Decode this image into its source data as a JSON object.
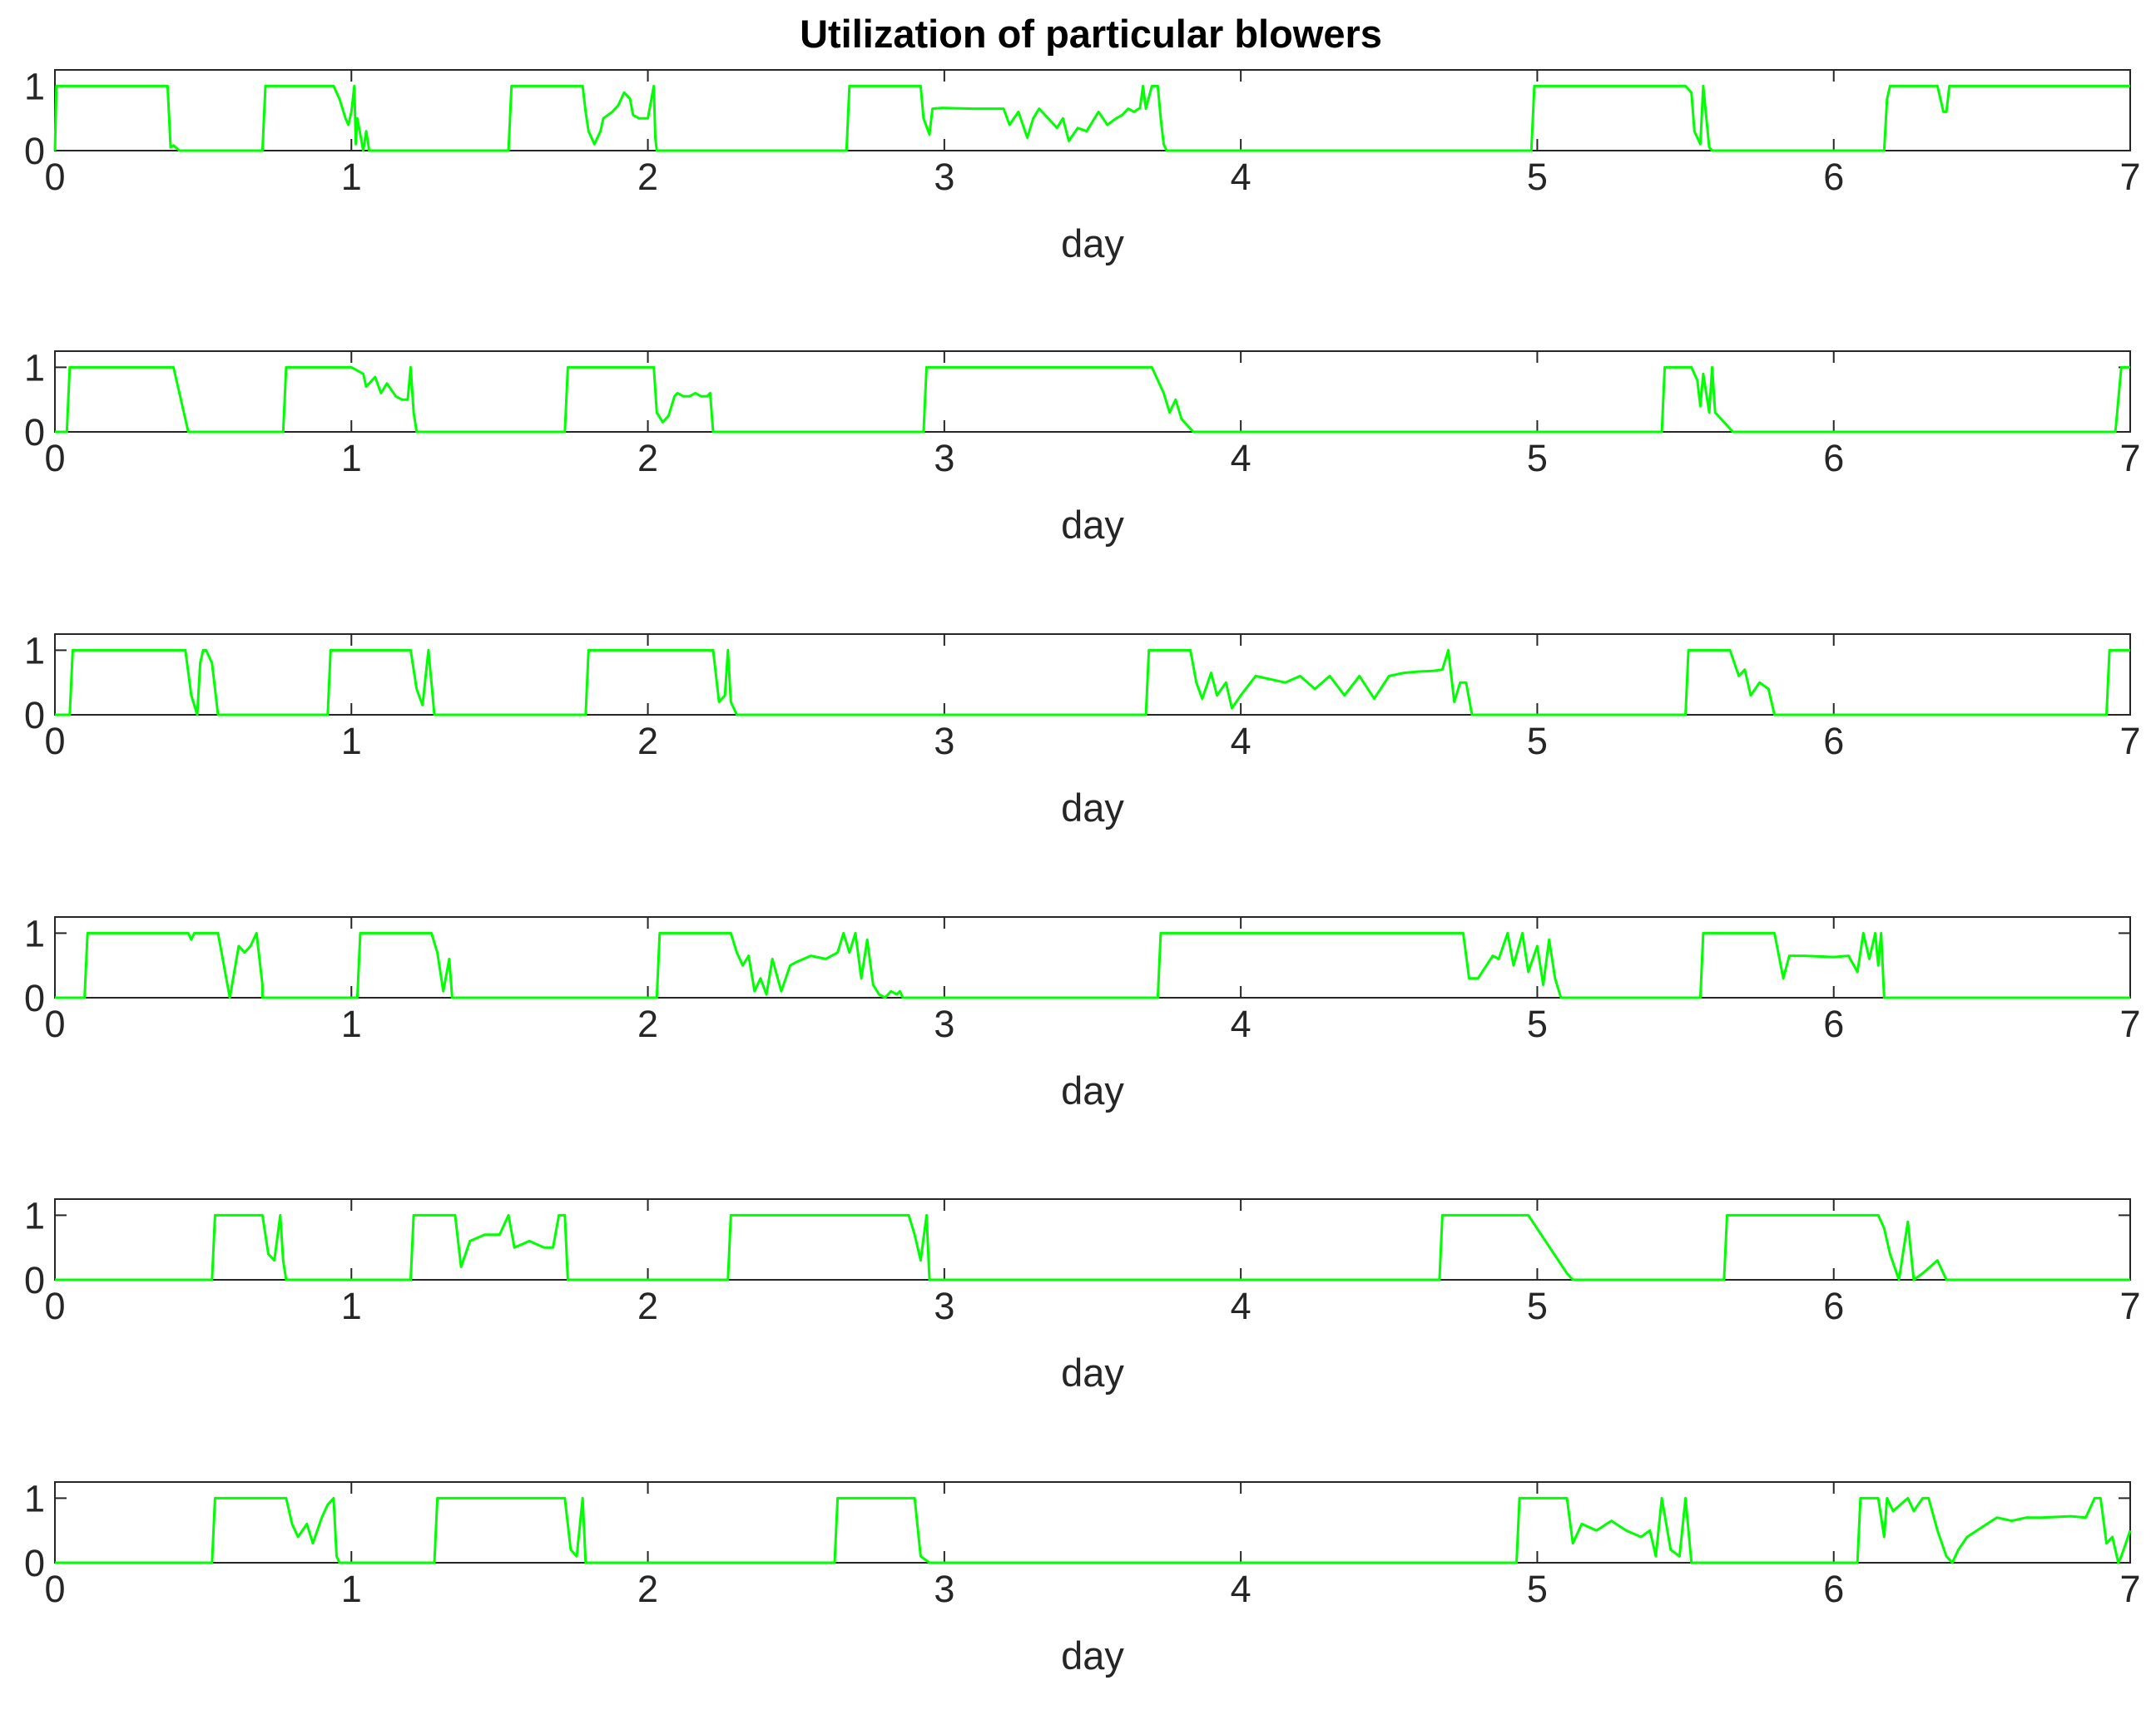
{
  "chart_data": {
    "title": "Utilization of particular blowers",
    "type": "line",
    "line_color": "#00ff00",
    "axis_color": "#262626",
    "grid": false,
    "subplots": [
      {
        "xlabel": "day",
        "xlim": [
          0,
          7
        ],
        "ylim": [
          0,
          1.25
        ],
        "xticks": [
          0,
          1,
          2,
          3,
          4,
          5,
          6,
          7
        ],
        "yticks": [
          0,
          1
        ],
        "x": [
          0,
          0.005,
          0.01,
          0.38,
          0.39,
          0.4,
          0.42,
          0.44,
          0.7,
          0.71,
          0.94,
          0.96,
          0.98,
          0.99,
          1.0,
          1.01,
          1.015,
          1.02,
          1.03,
          1.04,
          1.05,
          1.06,
          1.1,
          1.53,
          1.54,
          1.78,
          1.79,
          1.8,
          1.82,
          1.84,
          1.85,
          1.88,
          1.9,
          1.92,
          1.94,
          1.95,
          1.97,
          2.0,
          2.02,
          2.025,
          2.03,
          2.04,
          2.05,
          2.67,
          2.68,
          2.92,
          2.93,
          2.95,
          2.96,
          2.99,
          3.0,
          3.1,
          3.2,
          3.22,
          3.25,
          3.28,
          3.3,
          3.32,
          3.35,
          3.38,
          3.4,
          3.42,
          3.45,
          3.48,
          3.5,
          3.52,
          3.55,
          3.58,
          3.6,
          3.62,
          3.64,
          3.66,
          3.67,
          3.68,
          3.7,
          3.72,
          3.73,
          3.74,
          3.75,
          4.98,
          4.99,
          5.5,
          5.52,
          5.53,
          5.55,
          5.56,
          5.58,
          5.59,
          6.17,
          6.18,
          6.19,
          6.35,
          6.37,
          6.38,
          6.39,
          6.4,
          7.0
        ],
        "y": [
          0,
          1,
          1,
          1,
          0.05,
          0.08,
          0,
          0,
          0,
          1,
          1,
          0.8,
          0.5,
          0.4,
          0.6,
          1,
          0.1,
          0.5,
          0.25,
          0,
          0.3,
          0,
          0,
          0,
          1,
          1,
          0.6,
          0.3,
          0.1,
          0.3,
          0.5,
          0.6,
          0.7,
          0.9,
          0.8,
          0.55,
          0.5,
          0.5,
          1,
          0.2,
          0,
          0,
          0,
          0,
          1,
          1,
          0.5,
          0.25,
          0.65,
          0.66,
          0.66,
          0.65,
          0.65,
          0.4,
          0.6,
          0.2,
          0.5,
          0.65,
          0.5,
          0.35,
          0.5,
          0.15,
          0.35,
          0.3,
          0.45,
          0.6,
          0.4,
          0.5,
          0.55,
          0.65,
          0.6,
          0.66,
          1,
          0.65,
          1,
          1,
          0.5,
          0.1,
          0,
          0,
          1,
          1,
          0.9,
          0.3,
          0.1,
          1,
          0.05,
          0,
          0,
          0.8,
          1,
          1,
          0.6,
          0.6,
          1,
          1,
          1
        ]
      },
      {
        "xlabel": "day",
        "xlim": [
          0,
          7
        ],
        "ylim": [
          0,
          1.25
        ],
        "xticks": [
          0,
          1,
          2,
          3,
          4,
          5,
          6,
          7
        ],
        "yticks": [
          0,
          1
        ],
        "x": [
          0,
          0.04,
          0.05,
          0.4,
          0.45,
          0.77,
          0.78,
          1.0,
          1.04,
          1.05,
          1.08,
          1.1,
          1.12,
          1.15,
          1.17,
          1.19,
          1.2,
          1.21,
          1.22,
          1.72,
          1.73,
          2.02,
          2.03,
          2.05,
          2.07,
          2.09,
          2.1,
          2.12,
          2.14,
          2.16,
          2.18,
          2.2,
          2.21,
          2.22,
          2.93,
          2.94,
          3.7,
          3.74,
          3.76,
          3.78,
          3.8,
          3.84,
          5.42,
          5.43,
          5.52,
          5.54,
          5.55,
          5.56,
          5.58,
          5.59,
          5.6,
          5.65,
          5.66,
          6.95,
          6.97,
          7.0
        ],
        "y": [
          0,
          0,
          1,
          1,
          0,
          0,
          1,
          1,
          0.9,
          0.7,
          0.85,
          0.6,
          0.75,
          0.55,
          0.5,
          0.5,
          1,
          0.3,
          0,
          0,
          1,
          1,
          0.3,
          0.15,
          0.25,
          0.55,
          0.6,
          0.55,
          0.55,
          0.6,
          0.55,
          0.55,
          0.6,
          0,
          0,
          1,
          1,
          0.6,
          0.3,
          0.5,
          0.2,
          0,
          0,
          1,
          1,
          0.8,
          0.4,
          0.9,
          0.3,
          1,
          0.3,
          0.05,
          0,
          0,
          1,
          1
        ]
      },
      {
        "xlabel": "day",
        "xlim": [
          0,
          7
        ],
        "ylim": [
          0,
          1.25
        ],
        "xticks": [
          0,
          1,
          2,
          3,
          4,
          5,
          6,
          7
        ],
        "yticks": [
          0,
          1
        ],
        "x": [
          0,
          0.05,
          0.06,
          0.44,
          0.46,
          0.48,
          0.49,
          0.5,
          0.51,
          0.53,
          0.55,
          0.92,
          0.93,
          1.2,
          1.22,
          1.24,
          1.26,
          1.27,
          1.28,
          1.79,
          1.8,
          2.22,
          2.24,
          2.26,
          2.27,
          2.28,
          2.3,
          3.68,
          3.69,
          3.83,
          3.85,
          3.87,
          3.9,
          3.92,
          3.95,
          3.97,
          4.0,
          4.05,
          4.1,
          4.15,
          4.2,
          4.25,
          4.3,
          4.35,
          4.4,
          4.45,
          4.5,
          4.55,
          4.6,
          4.65,
          4.68,
          4.7,
          4.72,
          4.74,
          4.76,
          4.78,
          5.5,
          5.51,
          5.65,
          5.68,
          5.7,
          5.72,
          5.75,
          5.78,
          5.8,
          6.92,
          6.93,
          7.0
        ],
        "y": [
          0,
          0,
          1,
          1,
          0.3,
          0,
          0.8,
          1,
          1,
          0.8,
          0,
          0,
          1,
          1,
          0.4,
          0.15,
          1,
          0.5,
          0,
          0,
          1,
          1,
          0.2,
          0.3,
          1,
          0.2,
          0,
          0,
          1,
          1,
          0.5,
          0.25,
          0.65,
          0.3,
          0.5,
          0.1,
          0.3,
          0.6,
          0.55,
          0.5,
          0.6,
          0.4,
          0.6,
          0.3,
          0.6,
          0.25,
          0.6,
          0.65,
          0.67,
          0.68,
          0.7,
          1,
          0.2,
          0.5,
          0.5,
          0,
          0,
          1,
          1,
          0.6,
          0.7,
          0.3,
          0.5,
          0.4,
          0,
          0,
          1,
          1
        ]
      },
      {
        "xlabel": "day",
        "xlim": [
          0,
          7
        ],
        "ylim": [
          0,
          1.25
        ],
        "xticks": [
          0,
          1,
          2,
          3,
          4,
          5,
          6,
          7
        ],
        "yticks": [
          0,
          1
        ],
        "x": [
          0,
          0.1,
          0.11,
          0.45,
          0.46,
          0.47,
          0.55,
          0.57,
          0.59,
          0.62,
          0.64,
          0.66,
          0.68,
          0.7,
          0.7,
          1.02,
          1.03,
          1.27,
          1.29,
          1.31,
          1.33,
          1.34,
          2.03,
          2.04,
          2.28,
          2.3,
          2.32,
          2.34,
          2.36,
          2.38,
          2.4,
          2.42,
          2.45,
          2.48,
          2.5,
          2.55,
          2.6,
          2.64,
          2.66,
          2.68,
          2.7,
          2.72,
          2.74,
          2.76,
          2.78,
          2.8,
          2.82,
          2.84,
          2.85,
          2.86,
          3.72,
          3.73,
          4.75,
          4.77,
          4.8,
          4.85,
          4.87,
          4.9,
          4.92,
          4.95,
          4.97,
          5.0,
          5.02,
          5.04,
          5.06,
          5.08,
          5.55,
          5.56,
          5.8,
          5.83,
          5.85,
          5.9,
          6.0,
          6.05,
          6.08,
          6.1,
          6.12,
          6.14,
          6.15,
          6.16,
          6.17,
          7.0
        ],
        "y": [
          0,
          0,
          1,
          1,
          0.9,
          1,
          1,
          0.5,
          0,
          0.8,
          0.7,
          0.8,
          1,
          0.2,
          0,
          0,
          1,
          1,
          0.7,
          0.1,
          0.6,
          0,
          0,
          1,
          1,
          0.7,
          0.5,
          0.65,
          0.1,
          0.3,
          0.05,
          0.6,
          0.1,
          0.5,
          0.55,
          0.65,
          0.6,
          0.7,
          1,
          0.7,
          1,
          0.3,
          0.9,
          0.2,
          0.05,
          0,
          0.1,
          0.05,
          0.1,
          0,
          0,
          1,
          1,
          0.3,
          0.3,
          0.65,
          0.6,
          1,
          0.5,
          1,
          0.4,
          0.8,
          0.2,
          0.9,
          0.3,
          0,
          0,
          1,
          1,
          0.3,
          0.65,
          0.65,
          0.63,
          0.65,
          0.4,
          1,
          0.6,
          1,
          0.5,
          1,
          0,
          0
        ]
      },
      {
        "xlabel": "day",
        "xlim": [
          0,
          7
        ],
        "ylim": [
          0,
          1.25
        ],
        "xticks": [
          0,
          1,
          2,
          3,
          4,
          5,
          6,
          7
        ],
        "yticks": [
          0,
          1
        ],
        "x": [
          0,
          0.53,
          0.54,
          0.7,
          0.72,
          0.74,
          0.76,
          0.77,
          0.78,
          1.2,
          1.21,
          1.35,
          1.37,
          1.4,
          1.45,
          1.5,
          1.53,
          1.55,
          1.6,
          1.65,
          1.68,
          1.7,
          1.72,
          1.73,
          2.27,
          2.28,
          2.88,
          2.9,
          2.92,
          2.94,
          2.95,
          4.67,
          4.68,
          4.95,
          4.97,
          5.1,
          5.12,
          5.63,
          5.64,
          6.15,
          6.17,
          6.19,
          6.22,
          6.25,
          6.27,
          6.3,
          6.35,
          6.38,
          7.0
        ],
        "y": [
          0,
          0,
          1,
          1,
          0.4,
          0.3,
          1,
          0.3,
          0,
          0,
          1,
          1,
          0.2,
          0.6,
          0.7,
          0.7,
          1,
          0.5,
          0.6,
          0.5,
          0.5,
          1,
          1,
          0,
          0,
          1,
          1,
          0.7,
          0.3,
          1,
          0,
          0,
          1,
          1,
          1,
          0.1,
          0,
          0,
          1,
          1,
          0.8,
          0.4,
          0,
          0.9,
          0,
          0.1,
          0.3,
          0,
          0
        ]
      },
      {
        "xlabel": "day",
        "xlim": [
          0,
          7
        ],
        "ylim": [
          0,
          1.25
        ],
        "xticks": [
          0,
          1,
          2,
          3,
          4,
          5,
          6,
          7
        ],
        "yticks": [
          0,
          1
        ],
        "x": [
          0,
          0.53,
          0.54,
          0.78,
          0.8,
          0.82,
          0.85,
          0.87,
          0.9,
          0.92,
          0.94,
          0.95,
          0.96,
          1.28,
          1.29,
          1.72,
          1.74,
          1.76,
          1.78,
          1.79,
          2.63,
          2.64,
          2.9,
          2.92,
          2.95,
          4.93,
          4.94,
          5.1,
          5.12,
          5.15,
          5.2,
          5.25,
          5.3,
          5.35,
          5.38,
          5.4,
          5.42,
          5.45,
          5.48,
          5.5,
          5.52,
          6.08,
          6.09,
          6.15,
          6.17,
          6.18,
          6.2,
          6.25,
          6.27,
          6.3,
          6.32,
          6.35,
          6.38,
          6.4,
          6.42,
          6.45,
          6.5,
          6.55,
          6.6,
          6.65,
          6.7,
          6.8,
          6.85,
          6.88,
          6.9,
          6.92,
          6.94,
          6.96,
          6.97,
          7.0
        ],
        "y": [
          0,
          0,
          1,
          1,
          0.6,
          0.4,
          0.6,
          0.3,
          0.7,
          0.9,
          1,
          0.1,
          0,
          0,
          1,
          1,
          0.2,
          0.1,
          1,
          0,
          0,
          1,
          1,
          0.1,
          0,
          0,
          1,
          1,
          0.3,
          0.6,
          0.5,
          0.65,
          0.5,
          0.4,
          0.5,
          0.1,
          1,
          0.2,
          0.1,
          1,
          0,
          0,
          1,
          1,
          0.4,
          1,
          0.8,
          1,
          0.8,
          1,
          1,
          0.5,
          0.1,
          0,
          0.2,
          0.4,
          0.55,
          0.7,
          0.65,
          0.7,
          0.7,
          0.72,
          0.7,
          1,
          1,
          0.3,
          0.4,
          0,
          0.1,
          0.5
        ]
      }
    ]
  }
}
